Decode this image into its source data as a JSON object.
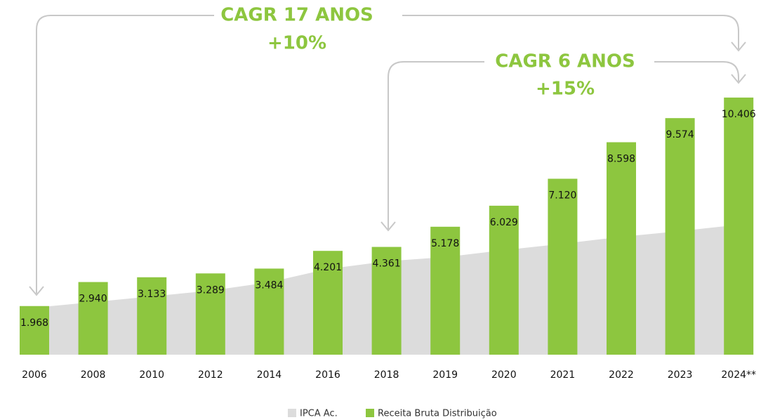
{
  "chart_data": {
    "type": "bar",
    "categories": [
      "2006",
      "2008",
      "2010",
      "2012",
      "2014",
      "2016",
      "2018",
      "2019",
      "2020",
      "2021",
      "2022",
      "2023",
      "2024**"
    ],
    "series": [
      {
        "name": "IPCA Ac.",
        "type": "area",
        "color": "#dcdcdc",
        "values": [
          1900,
          2130,
          2360,
          2590,
          2930,
          3470,
          3780,
          3950,
          4230,
          4490,
          4770,
          5000,
          5260
        ]
      },
      {
        "name": "Receita Bruta Distribuição",
        "type": "bar",
        "color": "#8dc63f",
        "values": [
          1968,
          2940,
          3133,
          3289,
          3484,
          4201,
          4361,
          5178,
          6029,
          7120,
          8598,
          9574,
          10406
        ],
        "value_labels": [
          "1.968",
          "2.940",
          "3.133",
          "3.289",
          "3.484",
          "4.201",
          "4.361",
          "5.178",
          "6.029",
          "7.120",
          "8.598",
          "9.574",
          "10.406"
        ]
      }
    ],
    "annotations": [
      "CAGR 17 ANOS",
      "+10%",
      "CAGR 6 ANOS",
      "+15%"
    ],
    "ylim": [
      0,
      11000
    ]
  }
}
